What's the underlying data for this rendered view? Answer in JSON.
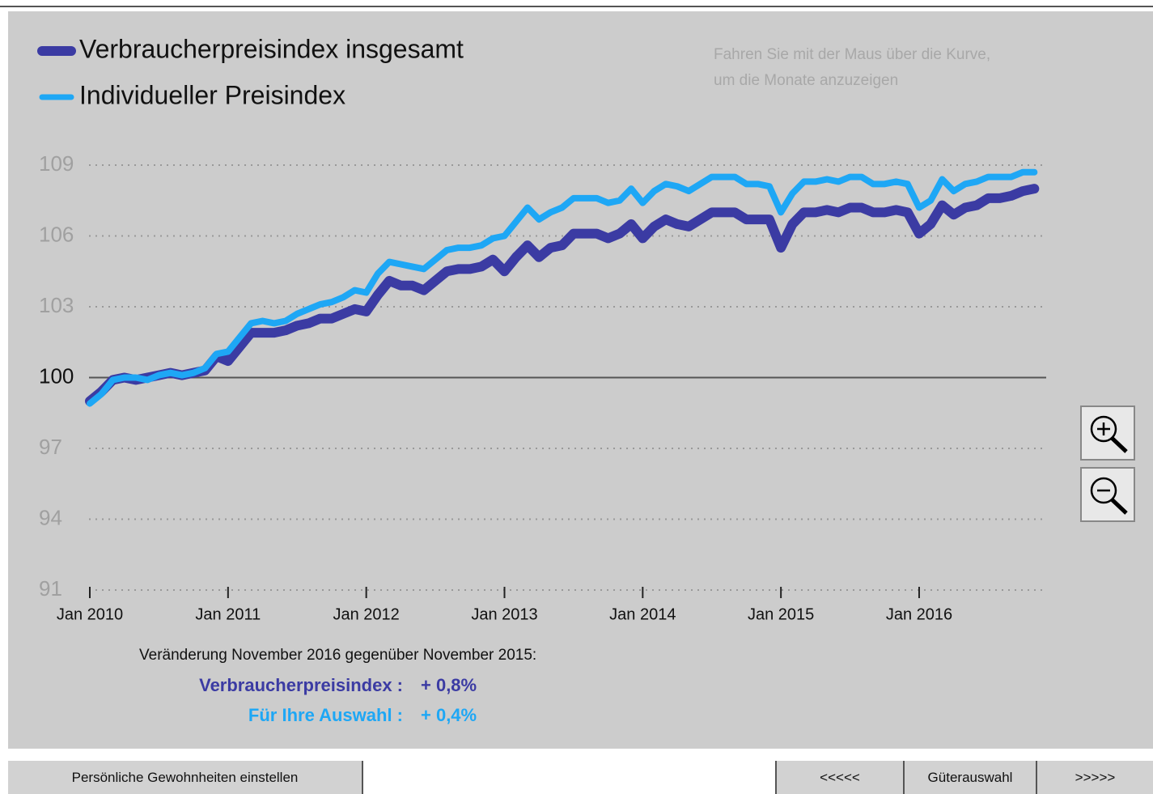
{
  "hint": [
    "Fahren Sie mit der Maus über die Kurve,",
    "um die Monate anzuzeigen"
  ],
  "chart_data": {
    "type": "line",
    "categories": [
      "Jan 2010",
      null,
      null,
      null,
      null,
      null,
      null,
      null,
      null,
      null,
      null,
      null,
      "Jan 2011",
      null,
      null,
      null,
      null,
      null,
      null,
      null,
      null,
      null,
      null,
      null,
      "Jan 2012",
      null,
      null,
      null,
      null,
      null,
      null,
      null,
      null,
      null,
      null,
      null,
      "Jan 2013",
      null,
      null,
      null,
      null,
      null,
      null,
      null,
      null,
      null,
      null,
      null,
      "Jan 2014",
      null,
      null,
      null,
      null,
      null,
      null,
      null,
      null,
      null,
      null,
      null,
      "Jan 2015",
      null,
      null,
      null,
      null,
      null,
      null,
      null,
      null,
      null,
      null,
      null,
      "Jan 2016",
      null,
      null,
      null,
      null,
      null,
      null,
      null,
      null,
      null,
      null
    ],
    "series": [
      {
        "name": "Verbraucherpreisindex insgesamt",
        "color": "#3b3ba3",
        "values": [
          99.0,
          99.4,
          99.9,
          100.0,
          99.9,
          100.0,
          100.1,
          100.2,
          100.1,
          100.2,
          100.3,
          100.9,
          100.7,
          101.3,
          101.9,
          101.9,
          101.9,
          102.0,
          102.2,
          102.3,
          102.5,
          102.5,
          102.7,
          102.9,
          102.8,
          103.5,
          104.1,
          103.9,
          103.9,
          103.7,
          104.1,
          104.5,
          104.6,
          104.6,
          104.7,
          105.0,
          104.5,
          105.1,
          105.6,
          105.1,
          105.5,
          105.6,
          106.1,
          106.1,
          106.1,
          105.9,
          106.1,
          106.5,
          105.9,
          106.4,
          106.7,
          106.5,
          106.4,
          106.7,
          107.0,
          107.0,
          107.0,
          106.7,
          106.7,
          106.7,
          105.5,
          106.5,
          107.0,
          107.0,
          107.1,
          107.0,
          107.2,
          107.2,
          107.0,
          107.0,
          107.1,
          107.0,
          106.1,
          106.5,
          107.3,
          106.9,
          107.2,
          107.3,
          107.6,
          107.6,
          107.7,
          107.9,
          108.0
        ]
      },
      {
        "name": "Individueller Preisindex",
        "color": "#1ea7f5",
        "values": [
          98.9,
          99.3,
          99.9,
          100.0,
          100.0,
          99.9,
          100.1,
          100.2,
          100.1,
          100.2,
          100.4,
          101.0,
          101.1,
          101.7,
          102.3,
          102.4,
          102.3,
          102.4,
          102.7,
          102.9,
          103.1,
          103.2,
          103.4,
          103.7,
          103.6,
          104.4,
          104.9,
          104.8,
          104.7,
          104.6,
          105.0,
          105.4,
          105.5,
          105.5,
          105.6,
          105.9,
          106.0,
          106.6,
          107.2,
          106.7,
          107.0,
          107.2,
          107.6,
          107.6,
          107.6,
          107.4,
          107.5,
          108.0,
          107.4,
          107.9,
          108.2,
          108.1,
          107.9,
          108.2,
          108.5,
          108.5,
          108.5,
          108.2,
          108.2,
          108.1,
          107.0,
          107.8,
          108.3,
          108.3,
          108.4,
          108.3,
          108.5,
          108.5,
          108.2,
          108.2,
          108.3,
          108.2,
          107.2,
          107.5,
          108.4,
          107.9,
          108.2,
          108.3,
          108.5,
          108.5,
          108.5,
          108.7,
          108.7
        ]
      }
    ],
    "ylim": [
      91,
      109
    ],
    "yticks": [
      91,
      94,
      97,
      100,
      103,
      106,
      109
    ],
    "grid": true,
    "baseline": 100
  },
  "summary": {
    "heading": "Veränderung November 2016 gegenüber November 2015:",
    "rows": [
      {
        "label": "Verbraucherpreisindex :",
        "value": "+ 0,8%",
        "color": "#3b3ba3"
      },
      {
        "label": "Für Ihre Auswahl :",
        "value": "+ 0,4%",
        "color": "#1ea7f5"
      }
    ]
  },
  "buttons": {
    "settings": "Persönliche Gewohnheiten einstellen",
    "prev": "<<<<<",
    "goods": "Güterauswahl",
    "next": ">>>>>"
  }
}
